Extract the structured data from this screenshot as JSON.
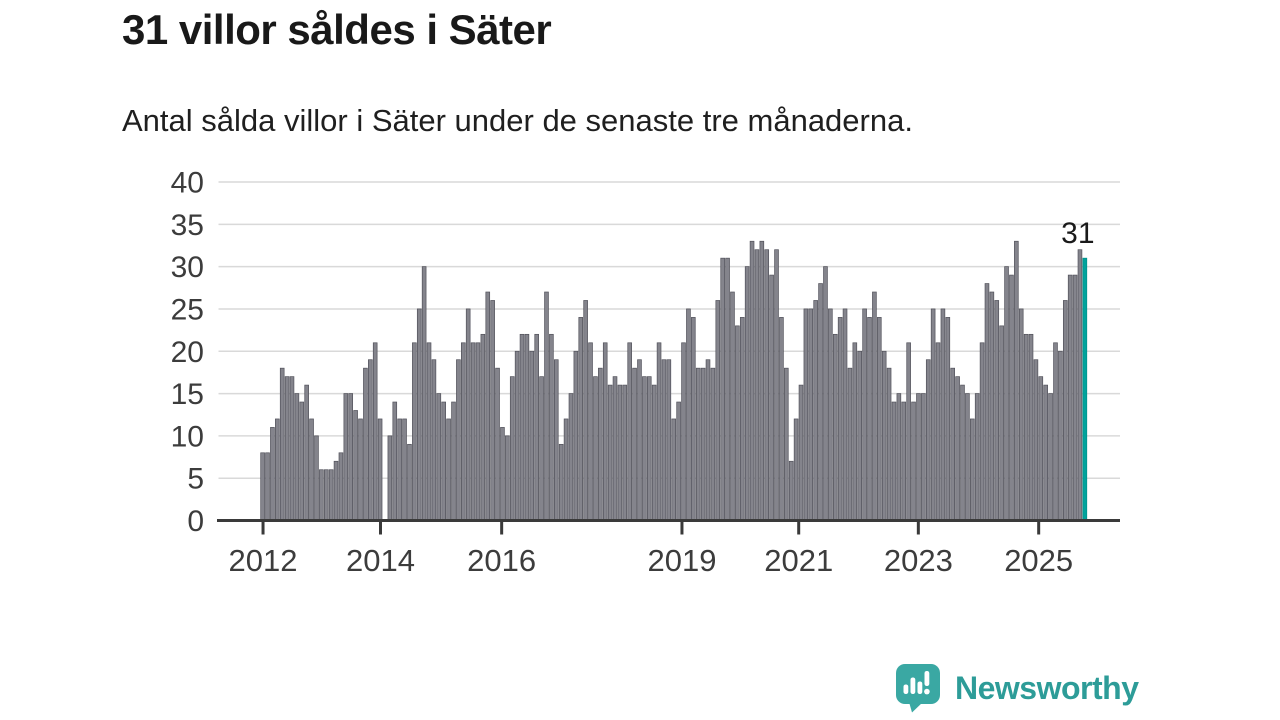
{
  "title": "31 villor såldes i Säter",
  "subtitle": "Antal sålda villor i Säter under de senaste tre månaderna.",
  "branding": {
    "name": "Newsworthy",
    "icon": "newsworthy-speech-bubble-chart-icon"
  },
  "colors": {
    "background": "#ffffff",
    "title_text": "#191919",
    "subtitle_text": "#1f1f1f",
    "bar_fill": "#84848c",
    "bar_stroke": "#51515a",
    "highlight_fill": "#00a39c",
    "highlight_stroke": "#008f89",
    "grid_line": "#d9d9d9",
    "axis_line": "#3a3a3a",
    "tick_label": "#3c3c3c",
    "annotation_text": "#1a1a1a",
    "logo_teal": "#3aa8a3",
    "wordmark_teal": "#2d9c98"
  },
  "chart_data": {
    "type": "bar",
    "title": "31 villor såldes i Säter",
    "subtitle": "Antal sålda villor i Säter under de senaste tre månaderna.",
    "xlabel": "",
    "ylabel": "",
    "ylim": [
      0,
      40
    ],
    "yticks": [
      0,
      5,
      10,
      15,
      20,
      25,
      30,
      35,
      40
    ],
    "grid": true,
    "legend": false,
    "x_unit": "month",
    "x_range_years": "2012–2025",
    "x_ticks": [
      {
        "label": "2012",
        "f": 0.0494
      },
      {
        "label": "2014",
        "f": 0.1797
      },
      {
        "label": "2016",
        "f": 0.3141
      },
      {
        "label": "2019",
        "f": 0.5141
      },
      {
        "label": "2021",
        "f": 0.6436
      },
      {
        "label": "2023",
        "f": 0.7763
      },
      {
        "label": "2025",
        "f": 0.9098
      }
    ],
    "layout": {
      "bar_start_f": 0.0468,
      "bar_pitch_f": 0.005429,
      "bar_width_ratio": 0.79
    },
    "values": [
      8,
      8,
      11,
      12,
      18,
      17,
      17,
      15,
      14,
      16,
      12,
      10,
      6,
      6,
      6,
      7,
      8,
      15,
      15,
      13,
      12,
      18,
      19,
      21,
      12,
      0,
      10,
      14,
      12,
      12,
      9,
      21,
      25,
      30,
      21,
      19,
      15,
      14,
      12,
      14,
      19,
      21,
      25,
      21,
      21,
      22,
      27,
      26,
      18,
      11,
      10,
      17,
      20,
      22,
      22,
      20,
      22,
      17,
      27,
      22,
      19,
      9,
      12,
      15,
      20,
      24,
      26,
      21,
      17,
      18,
      21,
      16,
      17,
      16,
      16,
      21,
      18,
      19,
      17,
      17,
      16,
      21,
      19,
      19,
      12,
      14,
      21,
      25,
      24,
      18,
      18,
      19,
      18,
      26,
      31,
      31,
      27,
      23,
      24,
      30,
      33,
      32,
      33,
      32,
      29,
      32,
      24,
      18,
      7,
      12,
      16,
      25,
      25,
      26,
      28,
      30,
      25,
      22,
      24,
      25,
      18,
      21,
      20,
      25,
      24,
      27,
      24,
      20,
      18,
      14,
      15,
      14,
      21,
      14,
      15,
      15,
      19,
      25,
      21,
      25,
      24,
      18,
      17,
      16,
      15,
      12,
      15,
      21,
      28,
      27,
      26,
      23,
      30,
      29,
      33,
      25,
      22,
      22,
      19,
      17,
      16,
      15,
      21,
      20,
      26,
      29,
      29,
      32,
      31
    ],
    "highlight_index": 168,
    "highlight_value": 31,
    "highlight_label": "31"
  }
}
